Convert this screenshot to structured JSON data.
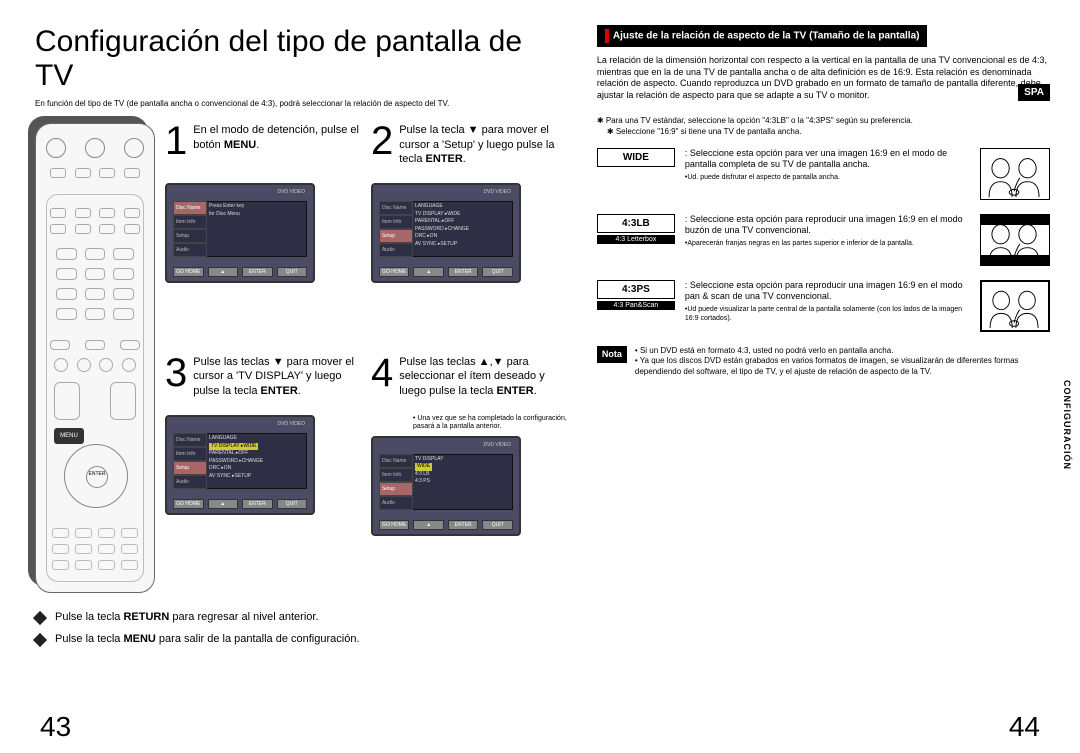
{
  "lang_tab": "SPA",
  "title": "Configuración del tipo de pantalla de TV",
  "subtitle": "En función del tipo de TV (de pantalla ancha o convencional de 4:3), podrá seleccionar la relación de aspecto del TV.",
  "page_left": "43",
  "page_right": "44",
  "side_tab": "CONFIGURACIÓN",
  "steps": [
    {
      "num": "1",
      "text_pre": "En el modo de detención, pulse el botón ",
      "text_bold": "MENU",
      "text_post": "."
    },
    {
      "num": "2",
      "text_pre": "Pulse la tecla ▼ para mover el cursor a 'Setup' y luego pulse la tecla ",
      "text_bold": "ENTER",
      "text_post": "."
    },
    {
      "num": "3",
      "text_pre": "Pulse las teclas ▼ para mover el cursor a 'TV DISPLAY' y luego pulse la tecla ",
      "text_bold": "ENTER",
      "text_post": "."
    },
    {
      "num": "4",
      "text_pre": "Pulse las teclas ▲,▼ para seleccionar el ítem deseado y luego pulse la tecla ",
      "text_bold": "ENTER",
      "text_post": ".",
      "note": "• Una vez que se ha completado la configuración, pasará a la pantalla anterior."
    }
  ],
  "screen_side_tabs": [
    "Disc Name",
    "Item Info",
    "Setup",
    "Audio"
  ],
  "screen_buttons": [
    "GO HOME",
    "▲",
    "ENTER",
    "QUIT"
  ],
  "screen1_lines": [
    "Press Enter key",
    "for Disc Menu"
  ],
  "screen2_lines": [
    "LANGUAGE",
    "TV DISPLAY ▸WIDE",
    "PARENTAL ▸OFF",
    "PASSWORD ▸CHANGE",
    "DRC ▸ON",
    "AV SYNC ▸SETUP"
  ],
  "screen3_lines": [
    "LANGUAGE",
    "TV DISPLAY ▸WIDE",
    "PARENTAL ▸OFF",
    "PASSWORD ▸CHANGE",
    "DRC ▸ON",
    "AV SYNC ▸SETUP"
  ],
  "screen4_lines": [
    "TV DISPLAY",
    "WIDE",
    "4:3 LB",
    "4:3 PS"
  ],
  "screen3_highlight": 1,
  "screen4_highlight": 1,
  "bullets": [
    {
      "pre": "Pulse la tecla ",
      "bold": "RETURN",
      "post": " para regresar al nivel anterior."
    },
    {
      "pre": "Pulse la tecla ",
      "bold": "MENU",
      "post": " para salir de la pantalla de configuración."
    }
  ],
  "banner": "Ajuste de la relación de aspecto de la TV (Tamaño de la pantalla)",
  "right_para": "La relación de la dimensión horizontal con respecto a la vertical en la pantalla de una TV convencional es de 4:3, mientras que en la de una TV de pantalla ancha o de alta definición es de 16:9. Esta relación es denominada relación de aspecto. Cuando reproduzca un DVD grabado en un formato de tamaño de pantalla diferente, debe ajustar la relación de aspecto para que se adapte a su TV o monitor.",
  "stars": [
    "Para una TV estándar, seleccione la opción \"4:3LB\" o la \"4:3PS\" según su preferencia.",
    "Seleccione \"16:9\" si tiene una TV de pantalla ancha."
  ],
  "options": [
    {
      "label": "WIDE",
      "sub": "",
      "text": "Seleccione esta opción para ver una imagen 16:9 en el modo de pantalla completa de su TV de pantalla ancha.",
      "note": "•Ud. puede disfrutar el aspecto de pantalla ancha.",
      "illus": "wide"
    },
    {
      "label": "4:3LB",
      "sub": "4:3 Letterbox",
      "text": "Seleccione esta opción para reproducir una imagen 16:9 en el modo buzón de una TV convencional.",
      "note": "•Aparecerán franjas negras en las partes superior e inferior de la pantalla.",
      "illus": "lb"
    },
    {
      "label": "4:3PS",
      "sub": "4:3 Pan&Scan",
      "text": "Seleccione esta opción para reproducir una imagen 16:9 en el modo pan & scan de una TV convencional.",
      "note": "•Ud puede visualizar la parte central de la pantalla solamente (con los lados de la imagen 16:9 cortados).",
      "illus": "ps"
    }
  ],
  "nota": {
    "label": "Nota",
    "items": [
      "Si un DVD está en formato 4:3, usted no podrá verlo en pantalla ancha.",
      "Ya que los discos DVD están grabados en varios formatos de imagen, se visualizarán de diferentes formas dependiendo del software, el tipo de TV, y el ajuste de relación de aspecto de la TV."
    ]
  },
  "remote": {
    "menu": "MENU",
    "enter": "ENTER"
  }
}
